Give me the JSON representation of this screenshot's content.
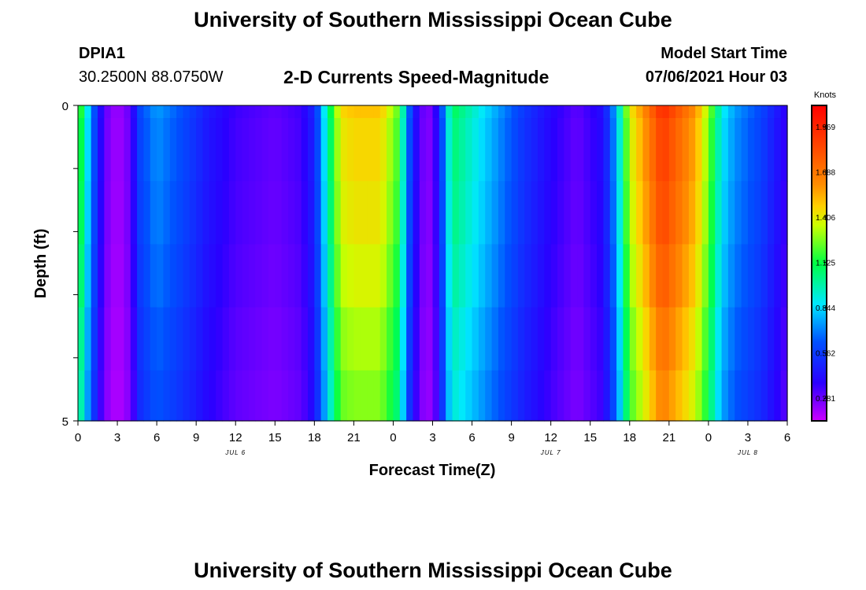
{
  "page": {
    "title_top": "University of Southern Mississippi Ocean Cube",
    "title_bottom": "University of Southern Mississippi Ocean Cube"
  },
  "header": {
    "station_id": "DPIA1",
    "location": "30.2500N  88.0750W",
    "model_label": "Model Start Time",
    "model_time": "07/06/2021 Hour 03"
  },
  "chart_data": {
    "type": "heatmap",
    "title": "2-D Currents Speed-Magnitude",
    "xlabel": "Forecast Time(Z)",
    "ylabel": "Depth (ft)",
    "y_ticks": [
      "0",
      "5"
    ],
    "y_range": [
      0,
      5
    ],
    "x_tick_labels": [
      "0",
      "3",
      "6",
      "9",
      "12",
      "15",
      "18",
      "21",
      "0",
      "3",
      "6",
      "9",
      "12",
      "15",
      "18",
      "21",
      "0",
      "3",
      "6"
    ],
    "date_labels": [
      {
        "label": "JUL 6",
        "hour": 12
      },
      {
        "label": "JUL 7",
        "hour": 36
      },
      {
        "label": "JUL 8",
        "hour": 51
      }
    ],
    "x_range_hours": [
      0,
      54
    ],
    "colorbar": {
      "unit": "Knots",
      "ticks": [
        "1.969",
        "1.688",
        "1.406",
        "1.125",
        "0.844",
        "0.562",
        "0.281"
      ],
      "tick_values": [
        1.969,
        1.688,
        1.406,
        1.125,
        0.844,
        0.562,
        0.281
      ],
      "range": [
        0.14,
        2.1
      ]
    },
    "layers": [
      "0-0.2",
      "0.2-1.2",
      "1.2-2.2",
      "2.2-3.2",
      "3.2-4.2",
      "4.2-5"
    ],
    "speed_profile": [
      {
        "hour": 0,
        "v": 1.3
      },
      {
        "hour": 0.5,
        "v": 1.0
      },
      {
        "hour": 1,
        "v": 0.75
      },
      {
        "hour": 1.5,
        "v": 0.5
      },
      {
        "hour": 2,
        "v": 0.3
      },
      {
        "hour": 3,
        "v": 0.2
      },
      {
        "hour": 4,
        "v": 0.3
      },
      {
        "hour": 4.7,
        "v": 0.6
      },
      {
        "hour": 6,
        "v": 0.75
      },
      {
        "hour": 8,
        "v": 0.62
      },
      {
        "hour": 10,
        "v": 0.45
      },
      {
        "hour": 12,
        "v": 0.35
      },
      {
        "hour": 15,
        "v": 0.3
      },
      {
        "hour": 17,
        "v": 0.35
      },
      {
        "hour": 18,
        "v": 0.5
      },
      {
        "hour": 19,
        "v": 1.0
      },
      {
        "hour": 20,
        "v": 1.45
      },
      {
        "hour": 21,
        "v": 1.5
      },
      {
        "hour": 23,
        "v": 1.5
      },
      {
        "hour": 24.5,
        "v": 1.2
      },
      {
        "hour": 25,
        "v": 0.75
      },
      {
        "hour": 26,
        "v": 0.3
      },
      {
        "hour": 27,
        "v": 0.25
      },
      {
        "hour": 27.5,
        "v": 0.5
      },
      {
        "hour": 28.5,
        "v": 1.1
      },
      {
        "hour": 30,
        "v": 0.95
      },
      {
        "hour": 32,
        "v": 0.75
      },
      {
        "hour": 34,
        "v": 0.55
      },
      {
        "hour": 36,
        "v": 0.4
      },
      {
        "hour": 38,
        "v": 0.3
      },
      {
        "hour": 40,
        "v": 0.42
      },
      {
        "hour": 41,
        "v": 0.8
      },
      {
        "hour": 42,
        "v": 1.4
      },
      {
        "hour": 43,
        "v": 1.6
      },
      {
        "hour": 44.5,
        "v": 1.95
      },
      {
        "hour": 47,
        "v": 1.6
      },
      {
        "hour": 48,
        "v": 1.3
      },
      {
        "hour": 49,
        "v": 0.9
      },
      {
        "hour": 50,
        "v": 0.75
      },
      {
        "hour": 52,
        "v": 0.6
      },
      {
        "hour": 54,
        "v": 0.35
      }
    ],
    "depth_factors": [
      1.0,
      0.97,
      0.95,
      0.92,
      0.88,
      0.85
    ]
  }
}
